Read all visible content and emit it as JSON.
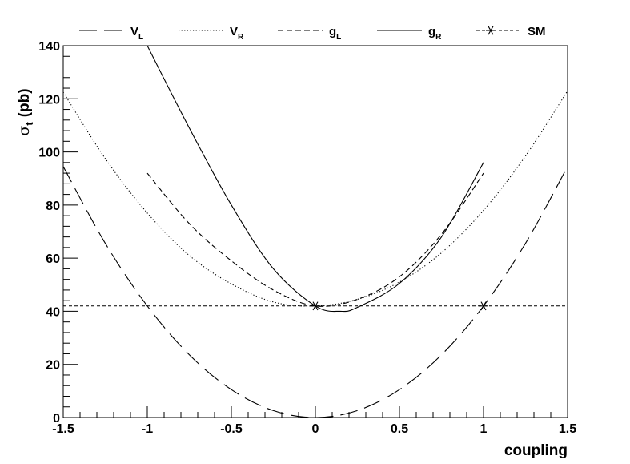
{
  "chart_data": {
    "type": "line",
    "xlabel": "coupling",
    "ylabel": "σ",
    "ylabel_sub": "t",
    "ylabel_unit": "(pb)",
    "xlim": [
      -1.5,
      1.5
    ],
    "ylim": [
      0,
      140
    ],
    "x_ticks": [
      -1.5,
      -1,
      -0.5,
      0,
      0.5,
      1,
      1.5
    ],
    "x_tick_labels": [
      "-1.5",
      "-1",
      "-0.5",
      "0",
      "0.5",
      "1",
      "1.5"
    ],
    "y_ticks": [
      0,
      20,
      40,
      60,
      80,
      100,
      120,
      140
    ],
    "y_tick_labels": [
      "0",
      "20",
      "40",
      "60",
      "80",
      "100",
      "120",
      "140"
    ],
    "grid": false,
    "legend_position": "top",
    "series": [
      {
        "name": "V",
        "name_sub": "L",
        "style": "long-dash",
        "points": [
          [
            -1.5,
            94.5
          ],
          [
            -1.25,
            65.6
          ],
          [
            -1,
            42
          ],
          [
            -0.75,
            23.6
          ],
          [
            -0.5,
            10.5
          ],
          [
            -0.25,
            2.6
          ],
          [
            0,
            0
          ],
          [
            0.25,
            2.6
          ],
          [
            0.5,
            10.5
          ],
          [
            0.75,
            23.6
          ],
          [
            1,
            42
          ],
          [
            1.25,
            65.6
          ],
          [
            1.5,
            94.5
          ]
        ]
      },
      {
        "name": "V",
        "name_sub": "R",
        "style": "dotted",
        "points": [
          [
            -1.5,
            122.5
          ],
          [
            -1.25,
            97.5
          ],
          [
            -1,
            77
          ],
          [
            -0.75,
            61
          ],
          [
            -0.5,
            50.3
          ],
          [
            -0.25,
            43.5
          ],
          [
            0,
            42
          ],
          [
            0.25,
            44.5
          ],
          [
            0.5,
            51
          ],
          [
            0.75,
            62
          ],
          [
            1,
            78
          ],
          [
            1.25,
            98.5
          ],
          [
            1.5,
            123
          ]
        ]
      },
      {
        "name": "g",
        "name_sub": "L",
        "style": "dashed",
        "points": [
          [
            -1,
            92
          ],
          [
            -0.75,
            73
          ],
          [
            -0.5,
            59
          ],
          [
            -0.25,
            48
          ],
          [
            0,
            42
          ],
          [
            0.25,
            44.5
          ],
          [
            0.5,
            53
          ],
          [
            0.75,
            69
          ],
          [
            1,
            92
          ]
        ]
      },
      {
        "name": "g",
        "name_sub": "R",
        "style": "solid",
        "points": [
          [
            -1.0,
            140
          ],
          [
            -0.75,
            109
          ],
          [
            -0.5,
            80
          ],
          [
            -0.25,
            56
          ],
          [
            0,
            42
          ],
          [
            0.15,
            40
          ],
          [
            0.25,
            41.5
          ],
          [
            0.5,
            50.5
          ],
          [
            0.75,
            68
          ],
          [
            1,
            96
          ]
        ]
      },
      {
        "name": "SM",
        "style": "short-dash-with-star",
        "y_constant": 42,
        "markers": [
          [
            0,
            42
          ],
          [
            1,
            42
          ]
        ]
      }
    ]
  }
}
